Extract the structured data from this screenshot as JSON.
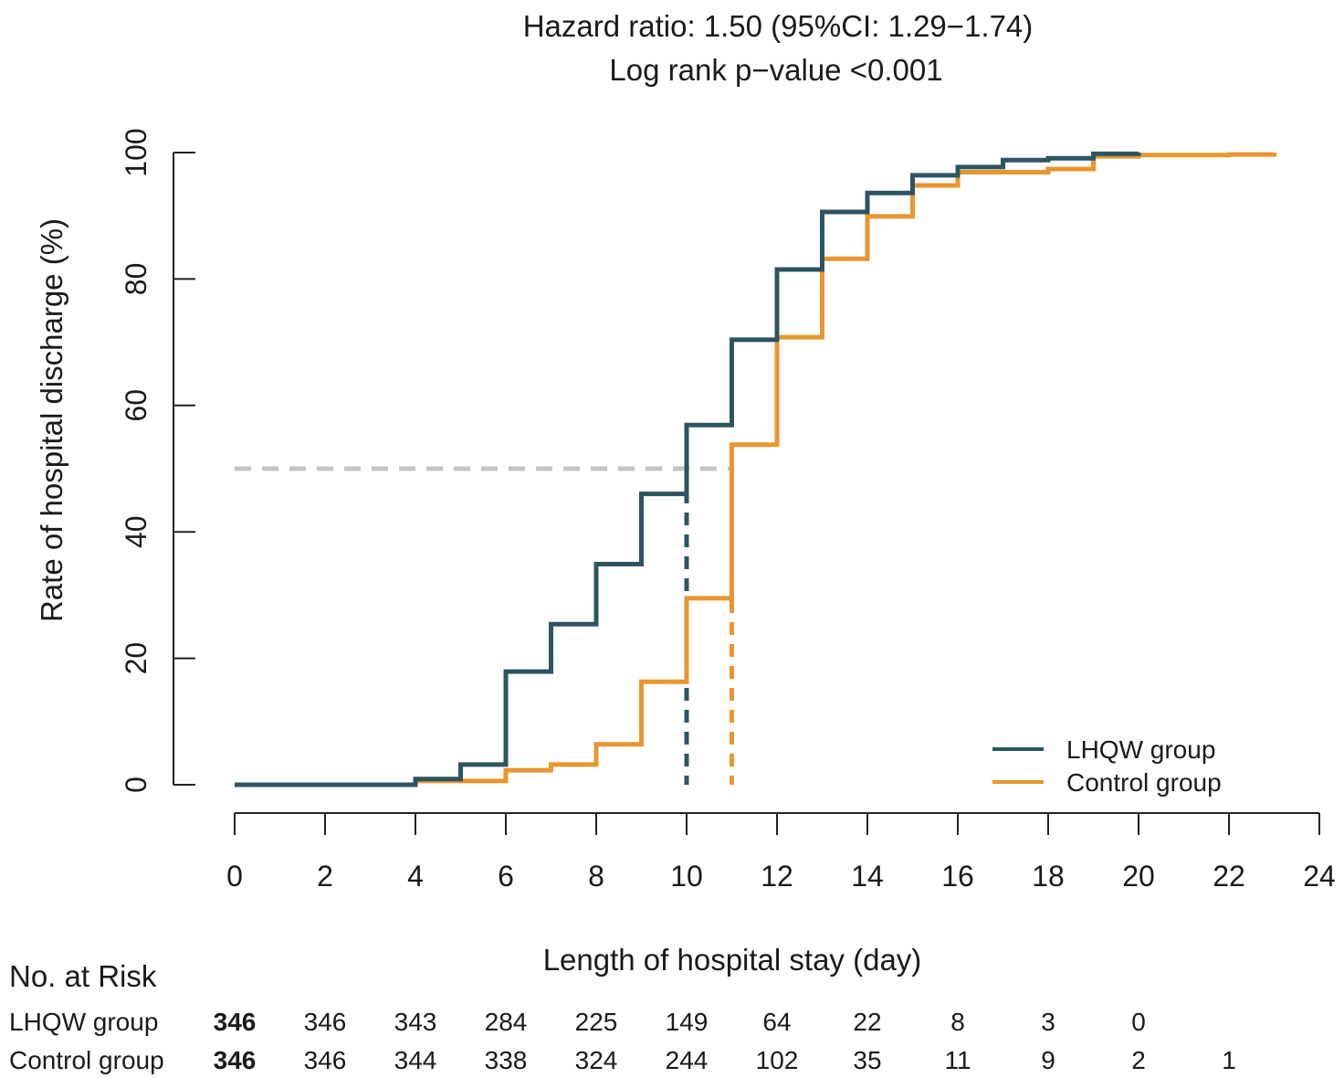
{
  "chart_data": {
    "type": "line",
    "subtype": "kaplan-meier-step",
    "title": "Hazard ratio: 1.50 (95%CI: 1.29−1.74)",
    "subtitle": "Log rank p−value <0.001",
    "xlabel": "Length of hospital stay (day)",
    "ylabel": "Rate of hospital discharge (%)",
    "xlim": [
      0,
      24
    ],
    "ylim": [
      0,
      100
    ],
    "x_ticks": [
      "0",
      "2",
      "4",
      "6",
      "8",
      "10",
      "12",
      "14",
      "16",
      "18",
      "20",
      "22",
      "24"
    ],
    "y_ticks": [
      "0",
      "20",
      "40",
      "60",
      "80",
      "100"
    ],
    "grid": false,
    "legend_position": "bottom-right",
    "series": [
      {
        "name": "LHQW group",
        "color": "#2d5561",
        "x": [
          0,
          4,
          5,
          6,
          7,
          8,
          9,
          10,
          11,
          12,
          13,
          14,
          15,
          16,
          17,
          18,
          19,
          20
        ],
        "y": [
          0,
          0.9,
          3.2,
          17.9,
          25.4,
          34.9,
          46.0,
          56.9,
          70.4,
          81.5,
          90.6,
          93.6,
          96.4,
          97.7,
          98.8,
          99.1,
          99.8,
          100
        ]
      },
      {
        "name": "Control group",
        "color": "#e8962d",
        "x": [
          0,
          4,
          6,
          7,
          8,
          9,
          10,
          11,
          12,
          13,
          14,
          15,
          16,
          18,
          19,
          20,
          22,
          23
        ],
        "y": [
          0,
          0.6,
          2.3,
          3.2,
          6.4,
          16.3,
          29.5,
          53.8,
          70.8,
          83.2,
          89.9,
          94.8,
          96.9,
          97.4,
          99.4,
          99.6,
          99.7,
          100
        ]
      }
    ],
    "reference_lines": {
      "median_level": 50,
      "medians": [
        {
          "series": "LHQW group",
          "x": 10
        },
        {
          "series": "Control group",
          "x": 11
        }
      ],
      "color": "#c4c4c4"
    },
    "risk_table": {
      "title": "No. at Risk",
      "times": [
        0,
        2,
        4,
        6,
        8,
        10,
        12,
        14,
        16,
        18,
        20,
        22
      ],
      "rows": [
        {
          "label": "LHQW group",
          "values": [
            "346",
            "346",
            "343",
            "284",
            "225",
            "149",
            "64",
            "22",
            "8",
            "3",
            "0"
          ]
        },
        {
          "label": "Control group",
          "values": [
            "346",
            "346",
            "344",
            "338",
            "324",
            "244",
            "102",
            "35",
            "11",
            "9",
            "2",
            "1"
          ]
        }
      ]
    }
  }
}
